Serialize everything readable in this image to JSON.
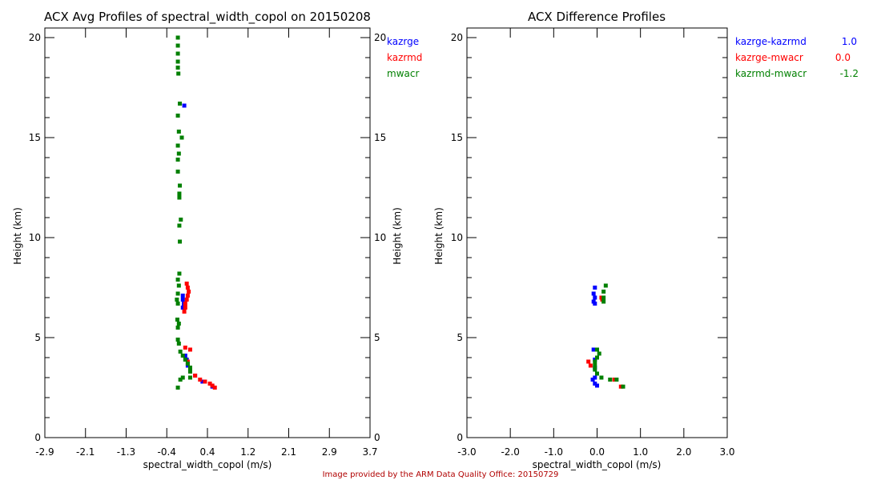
{
  "footer": "Image provided by the ARM Data Quality Office: 20150729",
  "colors": {
    "kazrge": "#0000ff",
    "kazrmd": "#ff0000",
    "mwacr": "#008000",
    "footer": "#b00000"
  },
  "chart_data": [
    {
      "type": "scatter",
      "title": "ACX Avg Profiles of spectral_width_copol on 20150208",
      "xlabel": "spectral_width_copol (m/s)",
      "ylabel": "Height (km)",
      "xlim": [
        -2.9,
        3.7
      ],
      "ylim": [
        0,
        20.5
      ],
      "xticks": [
        "-2.9",
        "-2.1",
        "-1.3",
        "-0.4",
        "0.4",
        "1.2",
        "2.1",
        "2.9",
        "3.7"
      ],
      "yticks": [
        "0",
        "5",
        "10",
        "15",
        "20"
      ],
      "legend_position": "right",
      "series": [
        {
          "name": "kazrge",
          "color": "#0000ff",
          "points": [
            [
              -0.07,
              16.6
            ],
            [
              -0.1,
              7.1
            ],
            [
              -0.1,
              6.9
            ],
            [
              -0.08,
              6.7
            ],
            [
              -0.1,
              6.5
            ],
            [
              -0.05,
              4.1
            ],
            [
              -0.02,
              3.9
            ],
            [
              0.0,
              3.6
            ],
            [
              0.05,
              3.3
            ],
            [
              0.15,
              3.1
            ],
            [
              0.3,
              2.8
            ],
            [
              0.5,
              2.55
            ]
          ]
        },
        {
          "name": "kazrmd",
          "color": "#ff0000",
          "points": [
            [
              -0.02,
              7.7
            ],
            [
              0.0,
              7.5
            ],
            [
              0.02,
              7.3
            ],
            [
              0.0,
              7.1
            ],
            [
              -0.02,
              6.9
            ],
            [
              -0.05,
              6.7
            ],
            [
              -0.05,
              6.5
            ],
            [
              -0.07,
              6.3
            ],
            [
              -0.05,
              4.5
            ],
            [
              0.05,
              4.4
            ],
            [
              0.0,
              3.8
            ],
            [
              0.05,
              3.4
            ],
            [
              0.15,
              3.1
            ],
            [
              0.25,
              2.9
            ],
            [
              0.35,
              2.8
            ],
            [
              0.45,
              2.7
            ],
            [
              0.5,
              2.6
            ],
            [
              0.55,
              2.5
            ]
          ]
        },
        {
          "name": "mwacr",
          "color": "#008000",
          "points": [
            [
              -0.2,
              20.0
            ],
            [
              -0.2,
              19.6
            ],
            [
              -0.2,
              19.2
            ],
            [
              -0.2,
              18.8
            ],
            [
              -0.2,
              18.5
            ],
            [
              -0.19,
              18.2
            ],
            [
              -0.16,
              16.7
            ],
            [
              -0.2,
              16.1
            ],
            [
              -0.18,
              15.3
            ],
            [
              -0.12,
              15.0
            ],
            [
              -0.2,
              14.6
            ],
            [
              -0.18,
              14.2
            ],
            [
              -0.2,
              13.9
            ],
            [
              -0.2,
              13.3
            ],
            [
              -0.16,
              12.6
            ],
            [
              -0.17,
              12.2
            ],
            [
              -0.17,
              12.0
            ],
            [
              -0.14,
              10.9
            ],
            [
              -0.17,
              10.6
            ],
            [
              -0.16,
              9.8
            ],
            [
              -0.17,
              8.2
            ],
            [
              -0.2,
              7.9
            ],
            [
              -0.18,
              7.6
            ],
            [
              -0.2,
              7.2
            ],
            [
              -0.22,
              6.9
            ],
            [
              -0.2,
              6.7
            ],
            [
              -0.21,
              5.9
            ],
            [
              -0.18,
              5.7
            ],
            [
              -0.2,
              5.5
            ],
            [
              -0.2,
              4.9
            ],
            [
              -0.18,
              4.7
            ],
            [
              -0.15,
              4.3
            ],
            [
              -0.1,
              4.1
            ],
            [
              -0.05,
              3.9
            ],
            [
              0.0,
              3.7
            ],
            [
              0.05,
              3.5
            ],
            [
              0.05,
              3.3
            ],
            [
              -0.1,
              3.0
            ],
            [
              -0.15,
              2.9
            ],
            [
              0.05,
              3.0
            ],
            [
              -0.2,
              2.5
            ]
          ]
        }
      ]
    },
    {
      "type": "scatter",
      "title": "ACX Difference Profiles",
      "xlabel": "spectral_width_copol (m/s)",
      "ylabel": "Height (km)",
      "xlim": [
        -3.0,
        3.0
      ],
      "ylim": [
        0,
        20.5
      ],
      "xticks": [
        "-3.0",
        "-2.0",
        "-1.0",
        "0.0",
        "1.0",
        "2.0",
        "3.0"
      ],
      "yticks": [
        "0",
        "5",
        "10",
        "15",
        "20"
      ],
      "legend_position": "right",
      "series": [
        {
          "name": "kazrge-kazrmd",
          "value": "1.0",
          "color": "#0000ff",
          "points": [
            [
              -0.05,
              7.5
            ],
            [
              -0.08,
              7.2
            ],
            [
              -0.05,
              7.0
            ],
            [
              -0.08,
              6.8
            ],
            [
              -0.05,
              6.7
            ],
            [
              -0.08,
              4.4
            ],
            [
              -0.05,
              3.9
            ],
            [
              -0.05,
              3.5
            ],
            [
              -0.05,
              3.0
            ],
            [
              -0.1,
              2.9
            ],
            [
              -0.05,
              2.7
            ],
            [
              0.0,
              2.6
            ]
          ]
        },
        {
          "name": "kazrge-mwacr",
          "value": "0.0",
          "color": "#ff0000",
          "points": [
            [
              0.1,
              7.0
            ],
            [
              0.12,
              6.9
            ],
            [
              -0.2,
              3.8
            ],
            [
              -0.15,
              3.6
            ],
            [
              0.4,
              2.9
            ],
            [
              0.55,
              2.55
            ]
          ]
        },
        {
          "name": "kazrmd-mwacr",
          "value": "-1.2",
          "color": "#008000",
          "points": [
            [
              0.2,
              7.6
            ],
            [
              0.15,
              7.3
            ],
            [
              0.15,
              7.0
            ],
            [
              0.15,
              6.8
            ],
            [
              0.0,
              4.4
            ],
            [
              0.05,
              4.2
            ],
            [
              0.0,
              4.0
            ],
            [
              -0.05,
              3.8
            ],
            [
              -0.05,
              3.6
            ],
            [
              -0.05,
              3.4
            ],
            [
              0.0,
              3.2
            ],
            [
              0.1,
              3.0
            ],
            [
              0.3,
              2.9
            ],
            [
              0.45,
              2.9
            ],
            [
              0.6,
              2.55
            ]
          ]
        }
      ]
    }
  ]
}
